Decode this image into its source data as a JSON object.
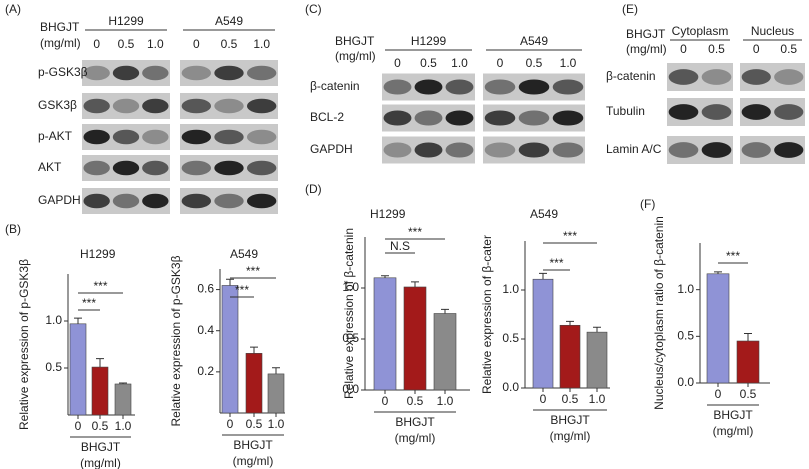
{
  "panels": [
    {
      "label": "(A)",
      "treatment_label": [
        "BHGJT",
        "(mg/ml)"
      ],
      "groups": [
        {
          "name": "H1299",
          "doses": [
            "0",
            "0.5",
            "1.0"
          ]
        },
        {
          "name": "A549",
          "doses": [
            "0",
            "0.5",
            "1.0"
          ]
        }
      ],
      "rows": [
        "p-GSK3β",
        "GSK3β",
        "p-AKT",
        "AKT",
        "GAPDH"
      ]
    },
    {
      "label": "(C)",
      "treatment_label": [
        "BHGJT",
        "(mg/ml)"
      ],
      "groups": [
        {
          "name": "H1299",
          "doses": [
            "0",
            "0.5",
            "1.0"
          ]
        },
        {
          "name": "A549",
          "doses": [
            "0",
            "0.5",
            "1.0"
          ]
        }
      ],
      "rows": [
        "β-catenin",
        "BCL-2",
        "GAPDH"
      ]
    },
    {
      "label": "(E)",
      "treatment_label": [
        "BHGJT",
        "(mg/ml)"
      ],
      "groups": [
        {
          "name": "Cytoplasm",
          "doses": [
            "0",
            "0.5"
          ]
        },
        {
          "name": "Nucleus",
          "doses": [
            "0",
            "0.5"
          ]
        }
      ],
      "rows": [
        "β-catenin",
        "Tubulin",
        "Lamin A/C"
      ]
    }
  ],
  "chart_data": [
    {
      "type": "bar",
      "panel": "(B)",
      "title": "H1299",
      "y_label": "Relative expression of p-GSK3β",
      "x_label": [
        "BHGJT",
        "(mg/ml)"
      ],
      "categories": [
        "0",
        "0.5",
        "1.0"
      ],
      "values": [
        0.97,
        0.51,
        0.33
      ],
      "errors": [
        0.06,
        0.09,
        0.01
      ],
      "colors": [
        "#8f93d6",
        "#a31a1a",
        "#8a8a8a"
      ],
      "ylim": [
        0,
        1.5
      ],
      "yticks": [
        0.5,
        {
          "value": 1,
          "label": "1.0"
        }
      ],
      "annotations": [
        "***",
        "***"
      ]
    },
    {
      "type": "bar",
      "title": "A549",
      "y_label": "Relative expression of p-GSK3β",
      "x_label": [
        "BHGJT",
        "(mg/ml)"
      ],
      "categories": [
        "0",
        "0.5",
        "1.0"
      ],
      "values": [
        0.62,
        0.29,
        0.19
      ],
      "errors": [
        0.03,
        0.03,
        0.03
      ],
      "colors": [
        "#8f93d6",
        "#a31a1a",
        "#8a8a8a"
      ],
      "ylim": [
        0,
        0.7
      ],
      "yticks": [
        0.2,
        0.4,
        0.6
      ],
      "annotations": [
        "***",
        "***"
      ]
    },
    {
      "type": "bar",
      "panel": "(D)",
      "title": "H1299",
      "y_label": "Relative expression of β-catenin",
      "x_label": [
        "BHGJT",
        "(mg/ml)"
      ],
      "categories": [
        "0",
        "0.5",
        "1.0"
      ],
      "values": [
        1.1,
        1.01,
        0.75
      ],
      "errors": [
        0.02,
        0.05,
        0.04
      ],
      "colors": [
        "#8f93d6",
        "#a31a1a",
        "#8a8a8a"
      ],
      "ylim": [
        0,
        1.5
      ],
      "yticks": [
        {
          "value": 0,
          "label": "0.0"
        },
        0.5,
        {
          "value": 1,
          "label": "1.0"
        }
      ],
      "annotations": [
        "N.S",
        "***"
      ]
    },
    {
      "type": "bar",
      "title": "A549",
      "y_label": "Relative expression of β-cater",
      "x_label": [
        "BHGJT",
        "(mg/ml)"
      ],
      "categories": [
        "0",
        "0.5",
        "1.0"
      ],
      "values": [
        1.11,
        0.64,
        0.57
      ],
      "errors": [
        0.06,
        0.04,
        0.05
      ],
      "colors": [
        "#8f93d6",
        "#a31a1a",
        "#8a8a8a"
      ],
      "ylim": [
        0,
        1.5
      ],
      "yticks": [
        {
          "value": 0,
          "label": "0.0"
        },
        0.5,
        {
          "value": 1,
          "label": "1.0"
        }
      ],
      "annotations": [
        "***",
        "***"
      ]
    },
    {
      "type": "bar",
      "panel": "(F)",
      "y_label": "Nucleus/cytoplasm ratio of β-catenin",
      "x_label": [
        "BHGJT",
        "(mg/ml)"
      ],
      "categories": [
        "0",
        "0.5"
      ],
      "values": [
        1.17,
        0.45
      ],
      "errors": [
        0.02,
        0.08
      ],
      "colors": [
        "#8f93d6",
        "#a31a1a"
      ],
      "ylim": [
        0,
        1.5
      ],
      "yticks": [
        {
          "value": 0,
          "label": "0.0"
        },
        0.5,
        {
          "value": 1,
          "label": "1.0"
        }
      ],
      "annotations": [
        "***"
      ]
    }
  ]
}
